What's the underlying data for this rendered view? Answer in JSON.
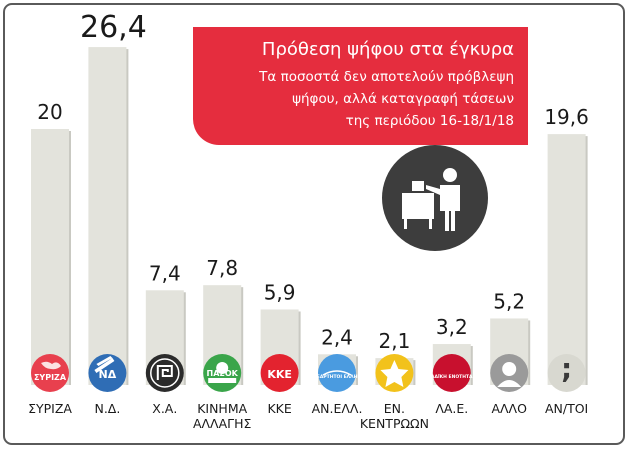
{
  "chart_data": {
    "type": "bar",
    "title": "Πρόθεση ψήφου στα έγκυρα",
    "subtitle_lines": [
      "Τα ποσοστά δεν αποτελούν πρόβλεψη",
      "ψήφου, αλλά καταγραφή τάσεων",
      "της περιόδου 16-18/1/18"
    ],
    "categories": [
      [
        "ΣΥΡΙΖΑ"
      ],
      [
        "Ν.Δ."
      ],
      [
        "Χ.Α."
      ],
      [
        "ΚΙΝΗΜΑ",
        "ΑΛΛΑΓΗΣ"
      ],
      [
        "ΚΚΕ"
      ],
      [
        "ΑΝ.ΕΛΛ."
      ],
      [
        "ΕΝ.",
        "ΚΕΝΤΡΩΩΝ"
      ],
      [
        "ΛΑ.Ε."
      ],
      [
        "ΑΛΛΟ"
      ],
      [
        "ΑΝ/ΤΟΙ"
      ]
    ],
    "values": [
      20,
      26.4,
      7.4,
      7.8,
      5.9,
      2.4,
      2.1,
      3.2,
      5.2,
      19.6
    ],
    "value_labels": [
      "20",
      "26,4",
      "7,4",
      "7,8",
      "5,9",
      "2,4",
      "2,1",
      "3,2",
      "5,2",
      "19,6"
    ],
    "highlight_index": 1,
    "logos": [
      {
        "icon": "syriza-logo-icon",
        "text": "ΣΥΡΙΖΑ",
        "color": "#e8404e"
      },
      {
        "icon": "nd-logo-icon",
        "text": "ΝΔ",
        "color": "#2f6db5"
      },
      {
        "icon": "meander-logo-icon",
        "text": "",
        "color": "#2b2b2b"
      },
      {
        "icon": "pasok-logo-icon",
        "text": "ΠΑΣΟΚ",
        "color": "#3aa54a"
      },
      {
        "icon": "kke-logo-icon",
        "text": "ΚΚΕ",
        "color": "#e3232f"
      },
      {
        "icon": "anel-logo-icon",
        "text": "ΑΝΕΞΑΡΤΗΤΟΙ ΕΛΛΗΝΕΣ",
        "color": "#4a9be0"
      },
      {
        "icon": "enosi-kentroon-logo-icon",
        "text": "",
        "color": "#f2c21b"
      },
      {
        "icon": "lae-logo-icon",
        "text": "ΛΑΪΚΗ ΕΝΟΤΗΤΑ",
        "color": "#c8102e"
      },
      {
        "icon": "person-silhouette-icon",
        "text": "",
        "color": "#9a9a9a"
      },
      {
        "icon": "semicolon-icon",
        "text": ";",
        "color": "#d8d8d0"
      }
    ],
    "colors": {
      "bar": "#e3e3dc",
      "bar_shadow": "#c9c9c2",
      "label": "#1a1a1a",
      "accent": "#e52d3e"
    },
    "grid": false
  }
}
